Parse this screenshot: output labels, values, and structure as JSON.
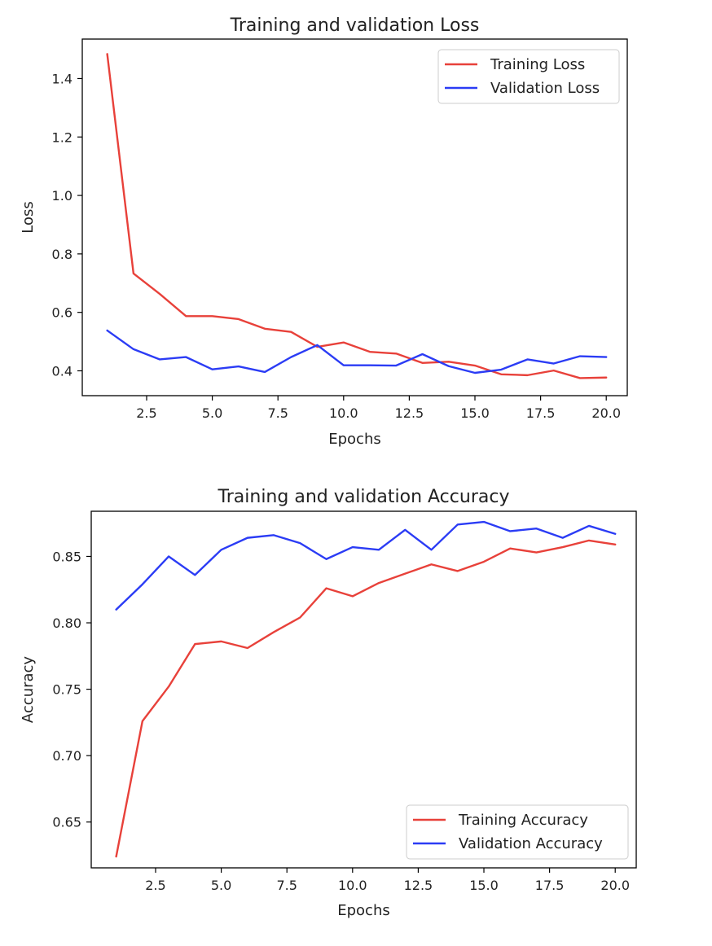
{
  "chart_data": [
    {
      "type": "line",
      "title": "Training and validation Loss",
      "xlabel": "Epochs",
      "ylabel": "Loss",
      "xlim": [
        0.05,
        20.8
      ],
      "ylim": [
        0.315,
        1.535
      ],
      "xticks": [
        2.5,
        5.0,
        7.5,
        10.0,
        12.5,
        15.0,
        17.5,
        20.0
      ],
      "xtick_labels": [
        "2.5",
        "5.0",
        "7.5",
        "10.0",
        "12.5",
        "15.0",
        "17.5",
        "20.0"
      ],
      "yticks": [
        0.4,
        0.6,
        0.8,
        1.0,
        1.2,
        1.4
      ],
      "ytick_labels": [
        "0.4",
        "0.6",
        "0.8",
        "1.0",
        "1.2",
        "1.4"
      ],
      "grid": false,
      "legend_position": "top-right",
      "x": [
        1,
        2,
        3,
        4,
        5,
        6,
        7,
        8,
        9,
        10,
        11,
        12,
        13,
        14,
        15,
        16,
        17,
        18,
        19,
        20
      ],
      "series": [
        {
          "name": "Training Loss",
          "color": "#e8413a",
          "values": [
            1.484,
            0.733,
            0.663,
            0.587,
            0.587,
            0.577,
            0.544,
            0.533,
            0.482,
            0.497,
            0.465,
            0.459,
            0.427,
            0.431,
            0.418,
            0.388,
            0.385,
            0.401,
            0.375,
            0.377
          ]
        },
        {
          "name": "Validation Loss",
          "color": "#2b3cf5",
          "values": [
            0.538,
            0.474,
            0.439,
            0.447,
            0.405,
            0.415,
            0.396,
            0.447,
            0.488,
            0.419,
            0.419,
            0.418,
            0.457,
            0.416,
            0.393,
            0.404,
            0.439,
            0.425,
            0.45,
            0.447
          ]
        }
      ]
    },
    {
      "type": "line",
      "title": "Training and validation Accuracy",
      "xlabel": "Epochs",
      "ylabel": "Accuracy",
      "xlim": [
        0.05,
        20.8
      ],
      "ylim": [
        0.6155,
        0.884
      ],
      "xticks": [
        2.5,
        5.0,
        7.5,
        10.0,
        12.5,
        15.0,
        17.5,
        20.0
      ],
      "xtick_labels": [
        "2.5",
        "5.0",
        "7.5",
        "10.0",
        "12.5",
        "15.0",
        "17.5",
        "20.0"
      ],
      "yticks": [
        0.65,
        0.7,
        0.75,
        0.8,
        0.85
      ],
      "ytick_labels": [
        "0.65",
        "0.70",
        "0.75",
        "0.80",
        "0.85"
      ],
      "grid": false,
      "legend_position": "bottom-right",
      "x": [
        1,
        2,
        3,
        4,
        5,
        6,
        7,
        8,
        9,
        10,
        11,
        12,
        13,
        14,
        15,
        16,
        17,
        18,
        19,
        20
      ],
      "series": [
        {
          "name": "Training Accuracy",
          "color": "#e8413a",
          "values": [
            0.624,
            0.726,
            0.752,
            0.784,
            0.786,
            0.781,
            0.793,
            0.804,
            0.826,
            0.82,
            0.83,
            0.837,
            0.844,
            0.839,
            0.846,
            0.856,
            0.853,
            0.857,
            0.862,
            0.859
          ]
        },
        {
          "name": "Validation Accuracy",
          "color": "#2b3cf5",
          "values": [
            0.81,
            0.829,
            0.85,
            0.836,
            0.855,
            0.864,
            0.866,
            0.86,
            0.848,
            0.857,
            0.855,
            0.87,
            0.855,
            0.874,
            0.876,
            0.869,
            0.871,
            0.864,
            0.873,
            0.867
          ]
        }
      ]
    }
  ]
}
